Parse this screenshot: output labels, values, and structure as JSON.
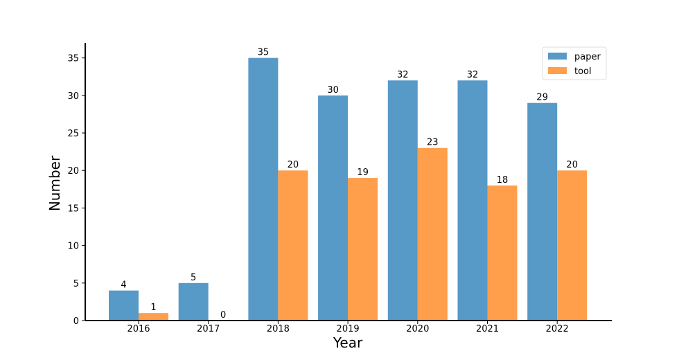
{
  "chart_data": {
    "type": "bar",
    "title": "",
    "xlabel": "Year",
    "ylabel": "Number",
    "categories": [
      "2016",
      "2017",
      "2018",
      "2019",
      "2020",
      "2021",
      "2022"
    ],
    "series": [
      {
        "name": "paper",
        "values": [
          4,
          5,
          35,
          30,
          32,
          32,
          29
        ],
        "color": "#5799c7"
      },
      {
        "name": "tool",
        "values": [
          1,
          0,
          20,
          19,
          23,
          18,
          20
        ],
        "color": "#ff9f4b"
      }
    ],
    "ylim": [
      0,
      37
    ],
    "yticks": [
      0,
      5,
      10,
      15,
      20,
      25,
      30,
      35
    ],
    "grid": false,
    "legend": "top-right"
  }
}
